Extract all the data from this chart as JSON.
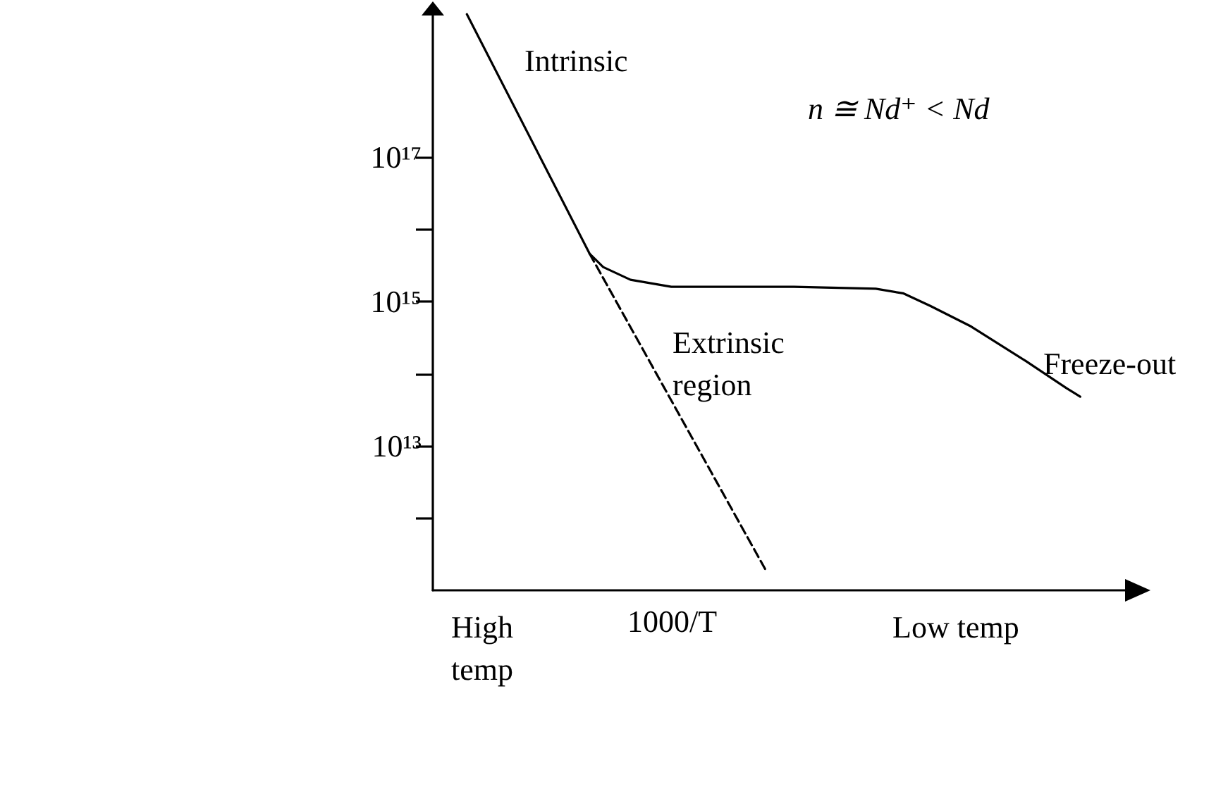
{
  "chart_data": {
    "type": "line",
    "xlabel": "1000/T",
    "annotations": [
      "Intrinsic",
      "n ≅ Nd⁺ < Nd",
      "Extrinsic region",
      "Freeze-out",
      "High temp",
      "Low temp"
    ],
    "categories": [
      null,
      null,
      null,
      null,
      null,
      null,
      null,
      null,
      null,
      null,
      null,
      null,
      null,
      null,
      null,
      null,
      null,
      null,
      null,
      null,
      null,
      null,
      null,
      null,
      null,
      null,
      null,
      null,
      null,
      null,
      null,
      null,
      null,
      null,
      null,
      null,
      null,
      null,
      null,
      null,
      null,
      null,
      null,
      null,
      null,
      null,
      null,
      null,
      null,
      null,
      null
    ],
    "series": [
      {
        "color": "#000000",
        "line_style": "solid",
        "values": [
          null,
          null,
          9.5e+18,
          null,
          null,
          null,
          null,
          null,
          null,
          null,
          null,
          4600000000000000.0,
          3000000000000000.0,
          null,
          2000000000000000.0,
          null,
          null,
          1600000000000000.0,
          null,
          null,
          1600000000000000.0,
          null,
          null,
          null,
          null,
          null,
          1600000000000000.0,
          null,
          null,
          null,
          null,
          null,
          1500000000000000.0,
          null,
          1300000000000000.0,
          null,
          870000000000000.0,
          null,
          null,
          450000000000000.0,
          null,
          null,
          null,
          150000000000000.0,
          null,
          null,
          63000000000000.0,
          48000000000000.0,
          null,
          null,
          null
        ]
      },
      {
        "color": "#000000",
        "line_style": "dashed",
        "values": [
          null,
          null,
          null,
          null,
          null,
          null,
          null,
          null,
          null,
          null,
          null,
          4600000000000000.0,
          null,
          null,
          null,
          null,
          null,
          null,
          null,
          null,
          null,
          null,
          null,
          null,
          180000000000.0,
          null,
          null,
          null,
          null,
          null,
          null,
          null,
          null,
          null,
          null,
          null,
          null,
          null,
          null,
          null,
          null,
          null,
          null,
          null,
          null,
          null,
          null,
          null,
          null,
          null,
          null
        ]
      }
    ],
    "log": "y",
    "ylim": [
      100000000000.0,
      1e+19
    ],
    "yticks": [
      {
        "value": 1e+17,
        "label": "10¹⁷"
      },
      {
        "value": 1e+16,
        "label": null
      },
      {
        "value": 1000000000000000.0,
        "label": "10¹⁵"
      },
      {
        "value": 100000000000000.0,
        "label": null
      },
      {
        "value": 10000000000000.0,
        "label": "10¹³"
      },
      {
        "value": 1000000000000.0,
        "label": null
      }
    ],
    "tick_labels": "y",
    "marker": "none"
  }
}
